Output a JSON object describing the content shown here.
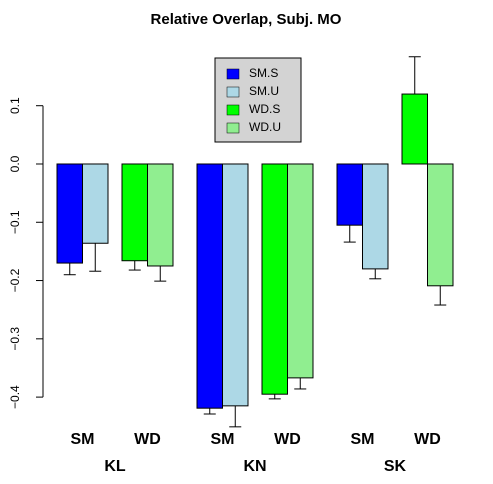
{
  "chart_data": {
    "type": "grouped-bar",
    "title": "Relative Overlap, Subj. MO",
    "categories": [
      "KL",
      "KN",
      "SK"
    ],
    "subgroups": [
      "SM",
      "WD"
    ],
    "series": [
      {
        "name": "SM.S",
        "color": "#0000ff",
        "values": [
          -0.17,
          -0.419,
          -0.105
        ],
        "errors": [
          0.02,
          0.01,
          0.029
        ]
      },
      {
        "name": "SM.U",
        "color": "#add8e6",
        "values": [
          -0.136,
          -0.415,
          -0.18
        ],
        "errors": [
          0.048,
          0.036,
          0.017
        ]
      },
      {
        "name": "WD.S",
        "color": "#00ff00",
        "values": [
          -0.166,
          -0.395,
          0.12
        ],
        "errors": [
          0.016,
          0.008,
          0.064
        ]
      },
      {
        "name": "WD.U",
        "color": "#90ee90",
        "values": [
          -0.175,
          -0.367,
          -0.209
        ],
        "errors": [
          0.026,
          0.019,
          0.033
        ]
      }
    ],
    "ylim": [
      -0.453,
      0.187
    ],
    "yticks": [
      0.1,
      {
        "value": 0,
        "label": "0.0"
      },
      {
        "value": -0.1,
        "label": "−0.1"
      },
      {
        "value": -0.2,
        "label": "−0.2"
      },
      {
        "value": -0.3,
        "label": "−0.3"
      },
      {
        "value": -0.4,
        "label": "−0.4"
      }
    ],
    "legend": "top"
  }
}
